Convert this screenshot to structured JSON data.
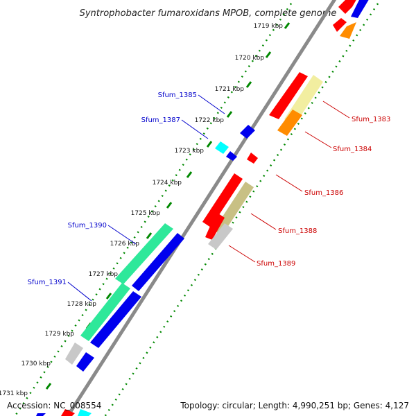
{
  "title": "Syntrophobacter fumaroxidans MPOB, complete genome",
  "footer": {
    "accession": "Accession: NC_008554",
    "summary": "Topology: circular; Length: 4,990,251 bp; Genes: 4,127"
  },
  "ticks": [
    "1719 kbp",
    "1720 kbp",
    "1721 kbp",
    "1722 kbp",
    "1723 kbp",
    "1724 kbp",
    "1725 kbp",
    "1726 kbp",
    "1727 kbp",
    "1728 kbp",
    "1729 kbp",
    "1730 kbp",
    "1731 kbp"
  ],
  "gene_labels_left": [
    "Sfum_1385",
    "Sfum_1387",
    "Sfum_1390",
    "Sfum_1391"
  ],
  "gene_labels_right": [
    "Sfum_1383",
    "Sfum_1384",
    "Sfum_1386",
    "Sfum_1388",
    "Sfum_1389"
  ],
  "colors": {
    "red": "#ff0000",
    "blue": "#0000ee",
    "orange": "#ff8c00",
    "cyan": "#00ffff",
    "green": "#2ee89a",
    "lightyellow": "#f0eea0",
    "khaki": "#c8c084",
    "grey": "#c8c8c8",
    "backbone": "#808080",
    "dots": "#008800"
  }
}
